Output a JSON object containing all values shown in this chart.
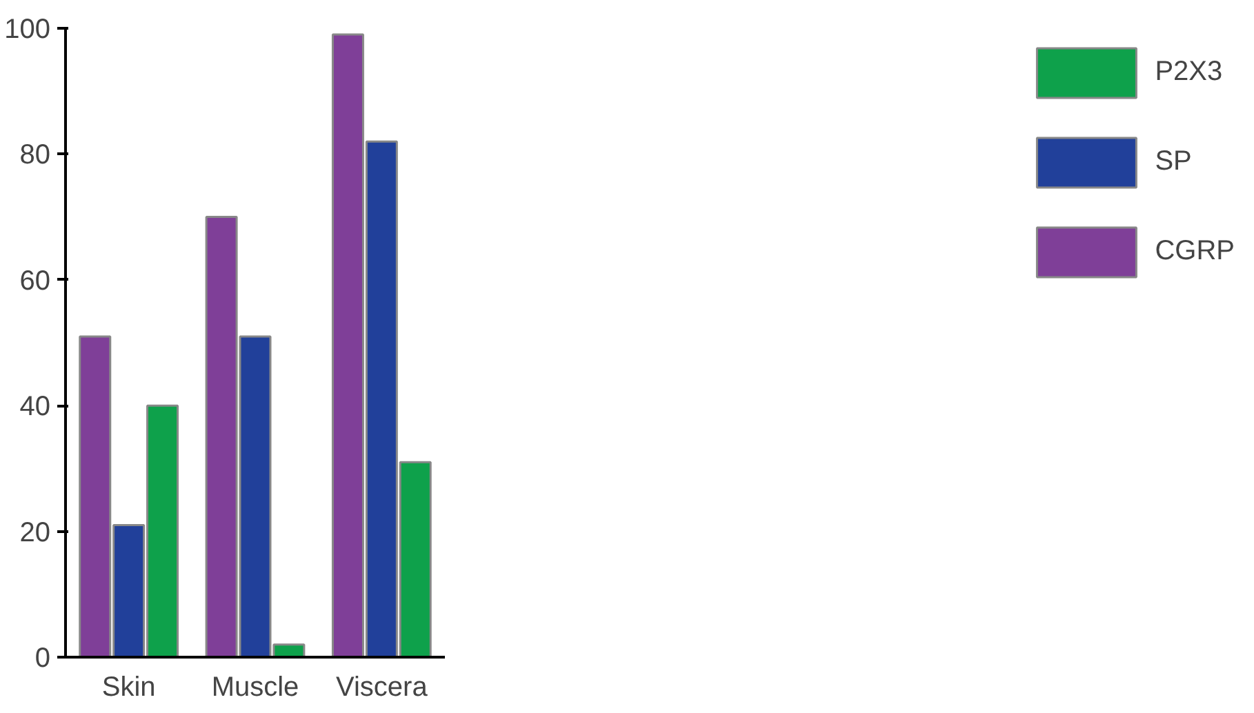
{
  "chart_data": {
    "type": "bar",
    "categories": [
      "Skin",
      "Muscle",
      "Viscera"
    ],
    "series": [
      {
        "name": "CGRP",
        "color": "#7f3f98",
        "values": [
          51,
          70,
          99
        ]
      },
      {
        "name": "SP",
        "color": "#21409a",
        "values": [
          21,
          51,
          82
        ]
      },
      {
        "name": "P2X3",
        "color": "#0ea14b",
        "values": [
          40,
          2,
          31
        ]
      }
    ],
    "ylim": [
      0,
      100
    ],
    "yticks": [
      0,
      20,
      40,
      60,
      80,
      100
    ],
    "grid": false,
    "legend": "right"
  }
}
